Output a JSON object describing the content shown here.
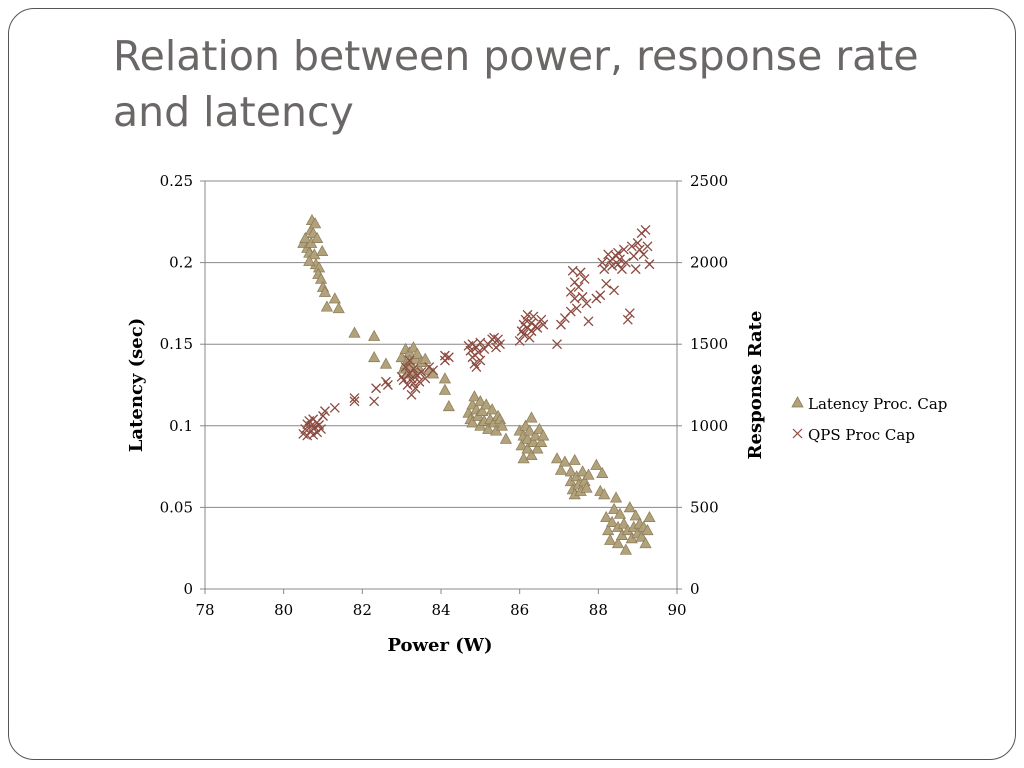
{
  "slide": {
    "title_line1": "Relation between power, response rate",
    "title_line2": "and latency"
  },
  "colors": {
    "frame": "#555555",
    "title": "#6b6766",
    "latency_fill": "#b2a27c",
    "latency_stroke": "#8a7a55",
    "qps": "#8c4a40",
    "gridline": "#888888"
  },
  "chart_data": {
    "type": "scatter",
    "xlabel": "Power (W)",
    "ylabel": "Latency (sec)",
    "y2label": "Response Rate",
    "xlim": [
      78,
      90
    ],
    "ylim": [
      0,
      0.25
    ],
    "y2lim": [
      0,
      2500
    ],
    "x_ticks": [
      "78",
      "80",
      "82",
      "84",
      "86",
      "88",
      "90"
    ],
    "y_ticks": [
      "0",
      "0.05",
      "0.1",
      "0.15",
      "0.2",
      "0.25"
    ],
    "y2_ticks": [
      "0",
      "500",
      "1000",
      "1500",
      "2000",
      "2500"
    ],
    "grid": "horizontal",
    "legend_position": "right",
    "series": [
      {
        "name": "Latency Proc. Cap",
        "marker": "triangle",
        "axis": "left",
        "points": [
          [
            80.5,
            0.212
          ],
          [
            80.55,
            0.215
          ],
          [
            80.6,
            0.209
          ],
          [
            80.65,
            0.206
          ],
          [
            80.7,
            0.22
          ],
          [
            80.7,
            0.212
          ],
          [
            80.72,
            0.226
          ],
          [
            80.75,
            0.218
          ],
          [
            80.8,
            0.224
          ],
          [
            80.78,
            0.205
          ],
          [
            80.82,
            0.199
          ],
          [
            80.85,
            0.215
          ],
          [
            80.65,
            0.201
          ],
          [
            80.9,
            0.197
          ],
          [
            80.88,
            0.193
          ],
          [
            80.95,
            0.19
          ],
          [
            80.98,
            0.207
          ],
          [
            81.0,
            0.185
          ],
          [
            81.05,
            0.182
          ],
          [
            81.1,
            0.173
          ],
          [
            81.3,
            0.178
          ],
          [
            81.4,
            0.172
          ],
          [
            81.8,
            0.157
          ],
          [
            82.3,
            0.155
          ],
          [
            82.3,
            0.142
          ],
          [
            82.6,
            0.138
          ],
          [
            83.0,
            0.142
          ],
          [
            83.05,
            0.135
          ],
          [
            83.1,
            0.147
          ],
          [
            83.1,
            0.138
          ],
          [
            83.15,
            0.132
          ],
          [
            83.2,
            0.145
          ],
          [
            83.2,
            0.14
          ],
          [
            83.25,
            0.137
          ],
          [
            83.3,
            0.148
          ],
          [
            83.3,
            0.132
          ],
          [
            83.35,
            0.141
          ],
          [
            83.4,
            0.144
          ],
          [
            83.45,
            0.135
          ],
          [
            83.5,
            0.139
          ],
          [
            83.6,
            0.141
          ],
          [
            83.7,
            0.134
          ],
          [
            83.8,
            0.132
          ],
          [
            84.1,
            0.129
          ],
          [
            84.1,
            0.122
          ],
          [
            84.2,
            0.112
          ],
          [
            84.7,
            0.108
          ],
          [
            84.75,
            0.104
          ],
          [
            84.8,
            0.113
          ],
          [
            84.8,
            0.102
          ],
          [
            84.85,
            0.118
          ],
          [
            84.9,
            0.11
          ],
          [
            84.95,
            0.106
          ],
          [
            85.0,
            0.115
          ],
          [
            85.0,
            0.1
          ],
          [
            85.05,
            0.109
          ],
          [
            85.1,
            0.103
          ],
          [
            85.15,
            0.113
          ],
          [
            85.2,
            0.098
          ],
          [
            85.25,
            0.104
          ],
          [
            85.3,
            0.11
          ],
          [
            85.35,
            0.102
          ],
          [
            85.4,
            0.097
          ],
          [
            85.45,
            0.106
          ],
          [
            85.5,
            0.104
          ],
          [
            85.55,
            0.1
          ],
          [
            85.65,
            0.092
          ],
          [
            86.0,
            0.097
          ],
          [
            86.05,
            0.088
          ],
          [
            86.1,
            0.094
          ],
          [
            86.1,
            0.08
          ],
          [
            86.15,
            0.1
          ],
          [
            86.2,
            0.086
          ],
          [
            86.2,
            0.092
          ],
          [
            86.25,
            0.097
          ],
          [
            86.3,
            0.082
          ],
          [
            86.3,
            0.105
          ],
          [
            86.35,
            0.09
          ],
          [
            86.4,
            0.094
          ],
          [
            86.45,
            0.086
          ],
          [
            86.5,
            0.098
          ],
          [
            86.55,
            0.09
          ],
          [
            86.6,
            0.094
          ],
          [
            86.95,
            0.08
          ],
          [
            87.05,
            0.073
          ],
          [
            87.15,
            0.078
          ],
          [
            87.3,
            0.066
          ],
          [
            87.3,
            0.072
          ],
          [
            87.35,
            0.061
          ],
          [
            87.4,
            0.079
          ],
          [
            87.4,
            0.058
          ],
          [
            87.45,
            0.069
          ],
          [
            87.5,
            0.064
          ],
          [
            87.55,
            0.06
          ],
          [
            87.6,
            0.072
          ],
          [
            87.65,
            0.066
          ],
          [
            87.7,
            0.062
          ],
          [
            87.75,
            0.07
          ],
          [
            87.95,
            0.076
          ],
          [
            88.05,
            0.06
          ],
          [
            88.1,
            0.071
          ],
          [
            88.15,
            0.058
          ],
          [
            88.2,
            0.044
          ],
          [
            88.25,
            0.036
          ],
          [
            88.3,
            0.03
          ],
          [
            88.35,
            0.041
          ],
          [
            88.4,
            0.049
          ],
          [
            88.45,
            0.056
          ],
          [
            88.5,
            0.038
          ],
          [
            88.5,
            0.028
          ],
          [
            88.55,
            0.046
          ],
          [
            88.6,
            0.033
          ],
          [
            88.65,
            0.04
          ],
          [
            88.7,
            0.024
          ],
          [
            88.75,
            0.036
          ],
          [
            88.8,
            0.05
          ],
          [
            88.85,
            0.031
          ],
          [
            88.9,
            0.038
          ],
          [
            88.95,
            0.045
          ],
          [
            89.0,
            0.034
          ],
          [
            89.05,
            0.04
          ],
          [
            89.1,
            0.032
          ],
          [
            89.15,
            0.038
          ],
          [
            89.2,
            0.028
          ],
          [
            89.25,
            0.036
          ],
          [
            89.3,
            0.044
          ]
        ]
      },
      {
        "name": "QPS Proc Cap",
        "marker": "x",
        "axis": "right",
        "points": [
          [
            80.5,
            950
          ],
          [
            80.55,
            980
          ],
          [
            80.6,
            1010
          ],
          [
            80.6,
            940
          ],
          [
            80.65,
            1030
          ],
          [
            80.7,
            970
          ],
          [
            80.7,
            1000
          ],
          [
            80.75,
            1040
          ],
          [
            80.75,
            945
          ],
          [
            80.8,
            990
          ],
          [
            80.85,
            1020
          ],
          [
            80.85,
            960
          ],
          [
            80.9,
            1005
          ],
          [
            80.95,
            980
          ],
          [
            81.0,
            1060
          ],
          [
            81.05,
            1090
          ],
          [
            81.3,
            1110
          ],
          [
            81.8,
            1150
          ],
          [
            81.8,
            1170
          ],
          [
            82.3,
            1150
          ],
          [
            82.35,
            1230
          ],
          [
            82.6,
            1270
          ],
          [
            82.65,
            1250
          ],
          [
            83.0,
            1300
          ],
          [
            83.05,
            1280
          ],
          [
            83.1,
            1360
          ],
          [
            83.15,
            1250
          ],
          [
            83.2,
            1320
          ],
          [
            83.2,
            1400
          ],
          [
            83.25,
            1290
          ],
          [
            83.25,
            1190
          ],
          [
            83.3,
            1350
          ],
          [
            83.3,
            1260
          ],
          [
            83.35,
            1230
          ],
          [
            83.4,
            1310
          ],
          [
            83.45,
            1270
          ],
          [
            83.5,
            1330
          ],
          [
            83.6,
            1290
          ],
          [
            83.7,
            1360
          ],
          [
            83.8,
            1340
          ],
          [
            84.1,
            1400
          ],
          [
            84.1,
            1430
          ],
          [
            84.2,
            1420
          ],
          [
            84.7,
            1490
          ],
          [
            84.75,
            1460
          ],
          [
            84.8,
            1500
          ],
          [
            84.8,
            1420
          ],
          [
            84.85,
            1380
          ],
          [
            84.9,
            1480
          ],
          [
            84.9,
            1360
          ],
          [
            84.95,
            1450
          ],
          [
            85.0,
            1400
          ],
          [
            85.0,
            1510
          ],
          [
            85.1,
            1470
          ],
          [
            85.2,
            1500
          ],
          [
            85.3,
            1530
          ],
          [
            85.35,
            1540
          ],
          [
            85.4,
            1480
          ],
          [
            85.45,
            1530
          ],
          [
            85.5,
            1500
          ],
          [
            86.0,
            1520
          ],
          [
            86.05,
            1580
          ],
          [
            86.1,
            1620
          ],
          [
            86.1,
            1560
          ],
          [
            86.15,
            1650
          ],
          [
            86.2,
            1600
          ],
          [
            86.2,
            1680
          ],
          [
            86.25,
            1540
          ],
          [
            86.3,
            1630
          ],
          [
            86.3,
            1580
          ],
          [
            86.35,
            1670
          ],
          [
            86.4,
            1610
          ],
          [
            86.45,
            1600
          ],
          [
            86.55,
            1650
          ],
          [
            86.6,
            1620
          ],
          [
            86.95,
            1500
          ],
          [
            87.05,
            1620
          ],
          [
            87.15,
            1660
          ],
          [
            87.3,
            1700
          ],
          [
            87.3,
            1820
          ],
          [
            87.35,
            1950
          ],
          [
            87.4,
            1780
          ],
          [
            87.4,
            1880
          ],
          [
            87.45,
            1720
          ],
          [
            87.5,
            1850
          ],
          [
            87.55,
            1940
          ],
          [
            87.6,
            1790
          ],
          [
            87.65,
            1900
          ],
          [
            87.7,
            1750
          ],
          [
            87.75,
            1640
          ],
          [
            87.95,
            1780
          ],
          [
            88.05,
            1800
          ],
          [
            88.1,
            2000
          ],
          [
            88.15,
            1960
          ],
          [
            88.2,
            1870
          ],
          [
            88.25,
            2050
          ],
          [
            88.3,
            2010
          ],
          [
            88.35,
            1980
          ],
          [
            88.4,
            1830
          ],
          [
            88.45,
            2040
          ],
          [
            88.5,
            2060
          ],
          [
            88.5,
            1990
          ],
          [
            88.55,
            2020
          ],
          [
            88.6,
            1960
          ],
          [
            88.65,
            2080
          ],
          [
            88.7,
            2000
          ],
          [
            88.75,
            1650
          ],
          [
            88.8,
            1690
          ],
          [
            88.85,
            2100
          ],
          [
            88.9,
            2040
          ],
          [
            88.95,
            1960
          ],
          [
            89.0,
            2120
          ],
          [
            89.05,
            2080
          ],
          [
            89.1,
            2180
          ],
          [
            89.15,
            2050
          ],
          [
            89.2,
            2200
          ],
          [
            89.25,
            2100
          ],
          [
            89.3,
            1990
          ]
        ]
      }
    ]
  }
}
